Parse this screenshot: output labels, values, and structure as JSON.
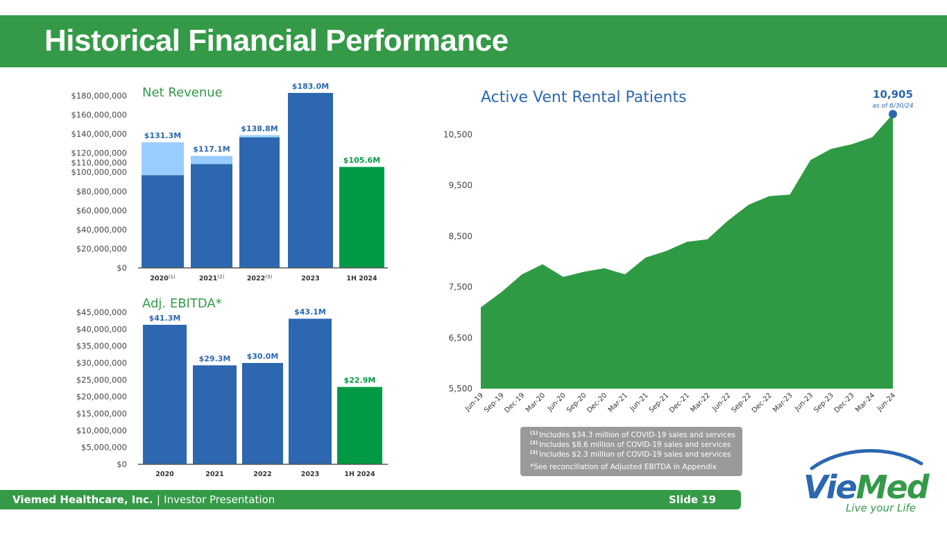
{
  "title": "Historical Financial Performance",
  "footer": {
    "company": "Viemed Healthcare, Inc.",
    "separator": "|",
    "presentation": "Investor Presentation",
    "slide": "Slide 19"
  },
  "notes": [
    {
      "mark": "(1)",
      "text": "Includes $34.3 million of COVID-19 sales and services"
    },
    {
      "mark": "(2)",
      "text": "Includes $8.6 million of COVID-19 sales and services"
    },
    {
      "mark": "(3)",
      "text": "Includes $2.3 million of COVID-19 sales and services"
    },
    {
      "mark": "",
      "text": "*See reconciliation of Adjusted EBITDA in Appendix"
    }
  ],
  "logo": {
    "brand_part1": "Vie",
    "brand_part2": "Med",
    "tagline": "Live your Life"
  },
  "colors": {
    "green": "#349a47",
    "bar_blue": "#2c67b0",
    "bar_lightblue": "#99ccff",
    "bar_green": "#009a44",
    "area_green": "#2f9a44",
    "note_gray": "#9a9a9a"
  },
  "chart_data": [
    {
      "type": "bar",
      "title": "Net Revenue",
      "categories": [
        "2020",
        "2021",
        "2022",
        "2023",
        "1H 2024"
      ],
      "category_superscripts": [
        "(1)",
        "(2)",
        "(3)",
        "",
        ""
      ],
      "series": [
        {
          "values": [
            97.0,
            108.5,
            136.5,
            183.0,
            105.6
          ]
        },
        {
          "values": [
            34.3,
            8.6,
            2.3,
            0,
            0
          ]
        }
      ],
      "data_labels": [
        "$131.3M",
        "$117.1M",
        "$138.8M",
        "$183.0M",
        "$105.6M"
      ],
      "totals": [
        131.3,
        117.1,
        138.8,
        183.0,
        105.6
      ],
      "ytick_values": [
        0,
        20,
        40,
        60,
        80,
        100,
        110,
        120,
        140,
        160,
        180
      ],
      "ytick_labels": [
        "$0",
        "$20,000,000",
        "$40,000,000",
        "$60,000,000",
        "$80,000,000",
        "$100,000,000",
        "$110,000,000",
        "$120,000,000",
        "$140,000,000",
        "$160,000,000",
        "$180,000,000"
      ],
      "ylim": [
        0,
        180
      ],
      "grid": false
    },
    {
      "type": "bar",
      "title": "Adj. EBITDA*",
      "categories": [
        "2020",
        "2021",
        "2022",
        "2023",
        "1H 2024"
      ],
      "values": [
        41.3,
        29.3,
        30.0,
        43.1,
        22.9
      ],
      "data_labels": [
        "$41.3M",
        "$29.3M",
        "$30.0M",
        "$43.1M",
        "$22.9M"
      ],
      "ytick_values": [
        0,
        5,
        10,
        15,
        20,
        25,
        30,
        35,
        40,
        45
      ],
      "ytick_labels": [
        "$0",
        "$5,000,000",
        "$10,000,000",
        "$15,000,000",
        "$20,000,000",
        "$25,000,000",
        "$30,000,000",
        "$35,000,000",
        "$40,000,000",
        "$45,000,000"
      ],
      "ylim": [
        0,
        45
      ],
      "grid": false
    },
    {
      "type": "area",
      "title": "Active Vent Rental Patients",
      "x": [
        "Jun-19",
        "Sep-19",
        "Dec-19",
        "Mar-20",
        "Jun-20",
        "Sep-20",
        "Dec-20",
        "Mar-21",
        "Jun-21",
        "Sep-21",
        "Dec-21",
        "Mar-22",
        "Jun-22",
        "Sep-22",
        "Dec-22",
        "Mar-23",
        "Jun-23",
        "Sep-23",
        "Dec-23",
        "Mar-24",
        "Jun-24"
      ],
      "values": [
        7100,
        7400,
        7750,
        7950,
        7700,
        7800,
        7870,
        7750,
        8080,
        8210,
        8390,
        8440,
        8810,
        9120,
        9290,
        9320,
        10000,
        10220,
        10310,
        10450,
        10905
      ],
      "yticks": [
        5500,
        6500,
        7500,
        8500,
        9500,
        10500
      ],
      "ytick_labels": [
        "5,500",
        "6,500",
        "7,500",
        "8,500",
        "9,500",
        "10,500"
      ],
      "ylim": [
        5500,
        10905
      ],
      "callout": {
        "value": "10,905",
        "note": "as of 6/30/24"
      },
      "grid": false
    }
  ]
}
